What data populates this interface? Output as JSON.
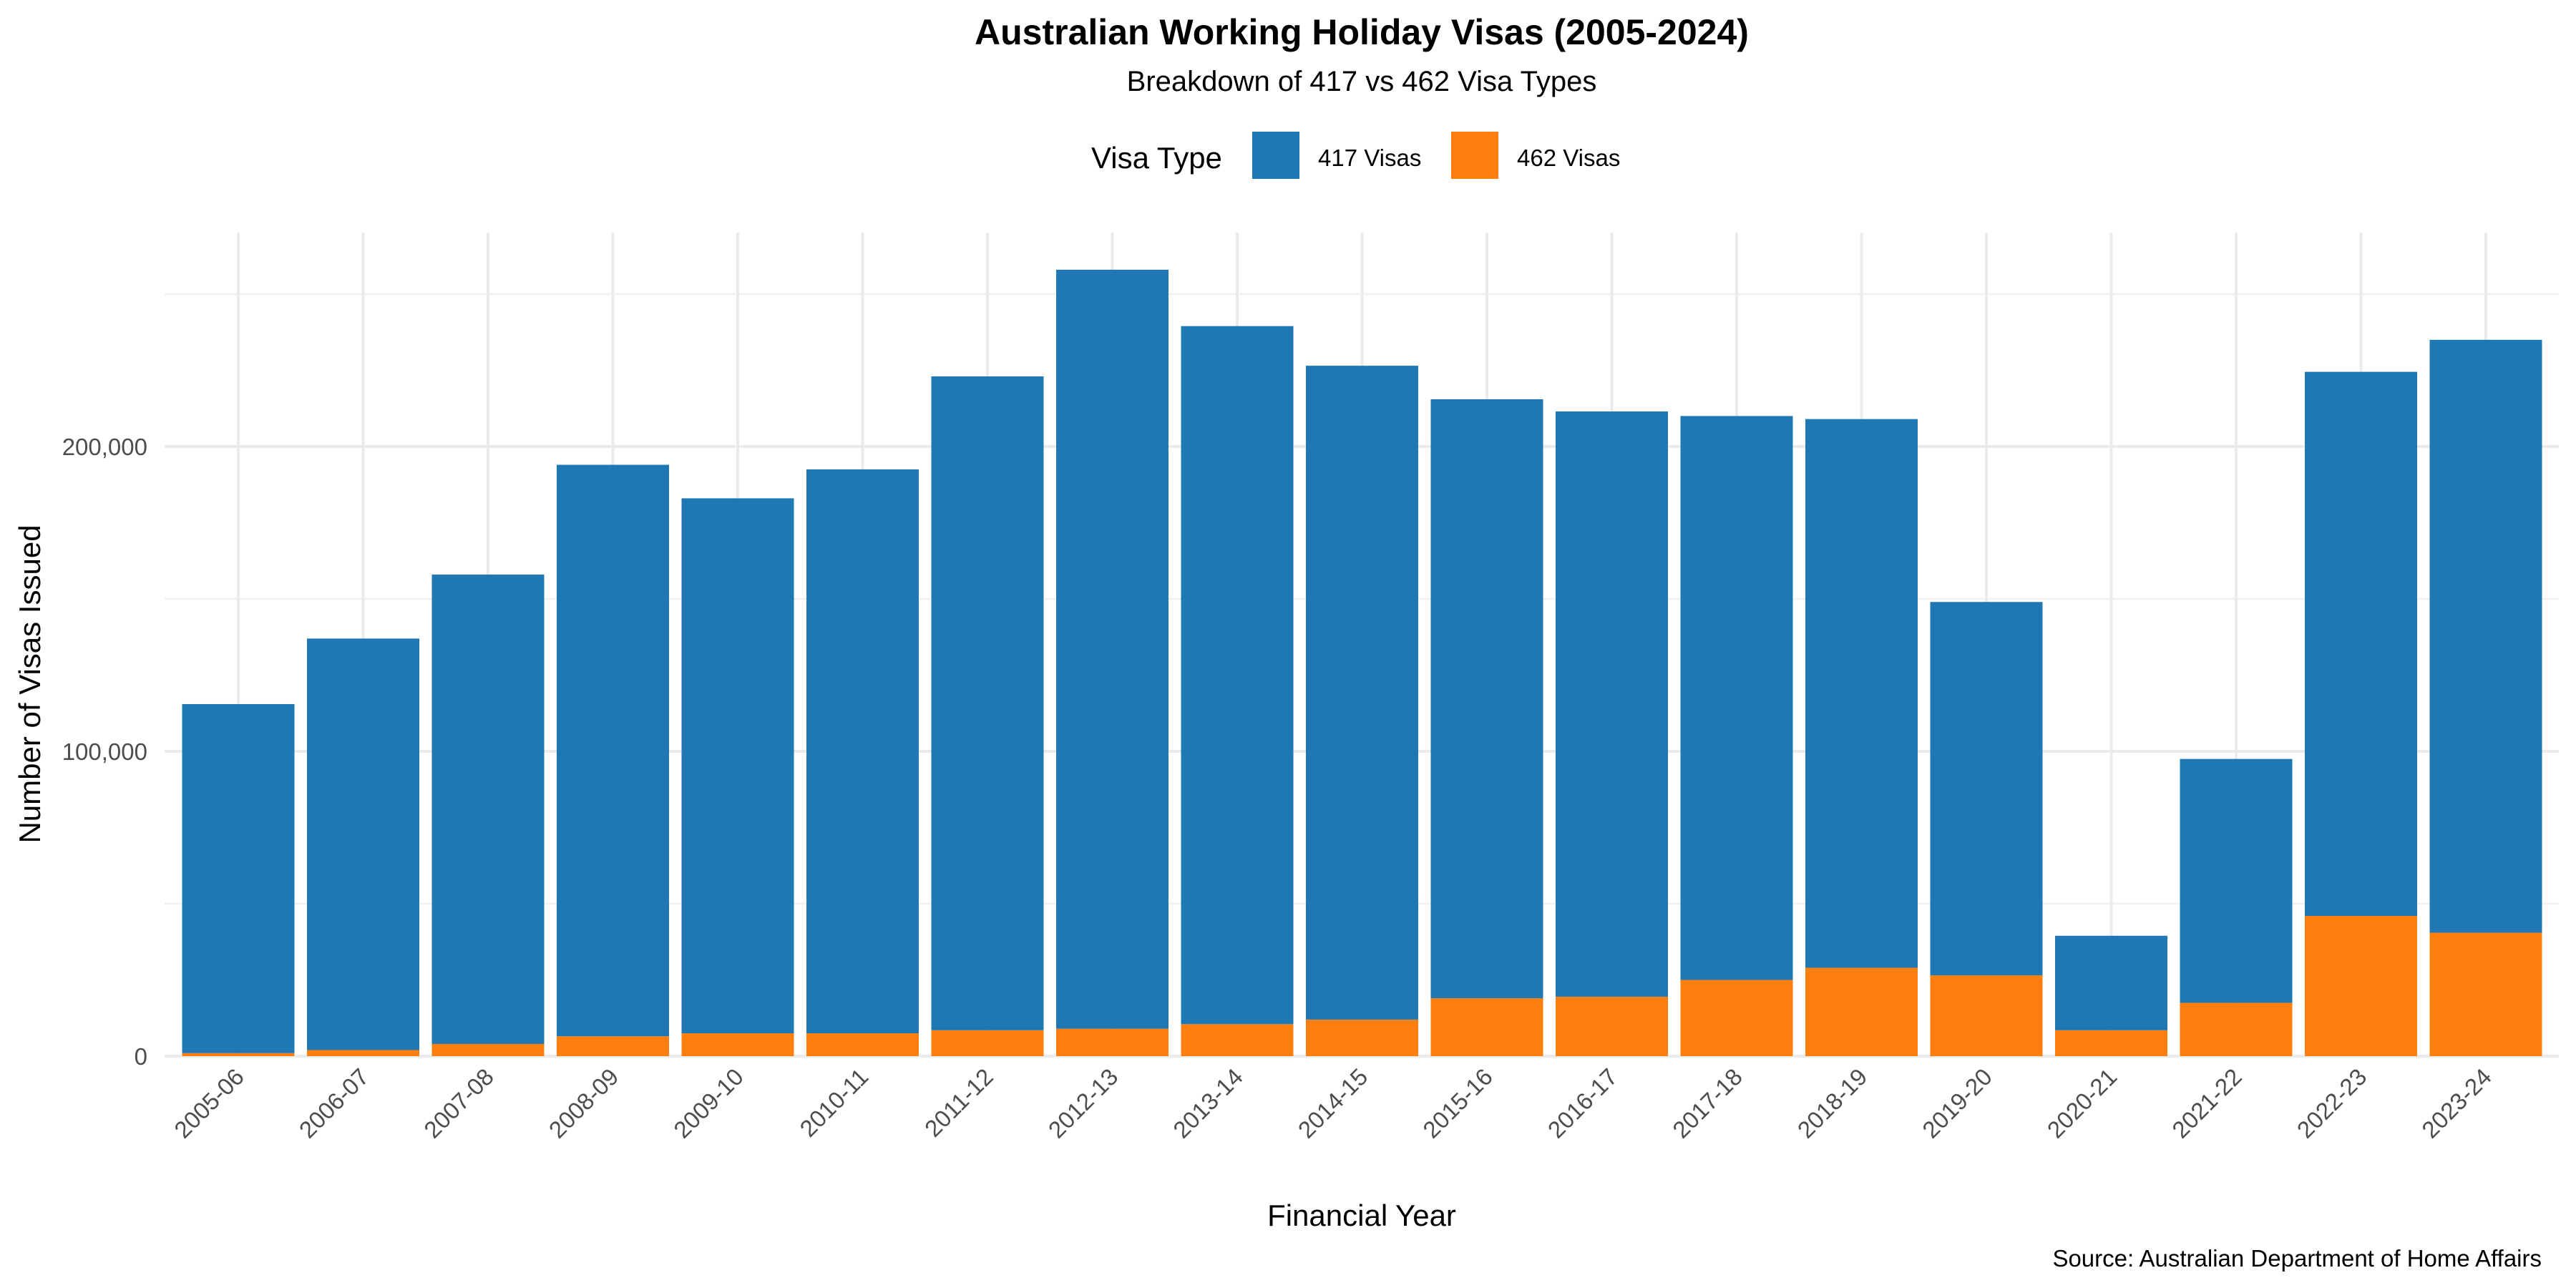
{
  "chart_data": {
    "type": "bar",
    "stacked": true,
    "title": "Australian Working Holiday Visas (2005-2024)",
    "subtitle": "Breakdown of 417 vs 462 Visa Types",
    "xlabel": "Financial Year",
    "ylabel": "Number of Visas Issued",
    "caption": "Source: Australian Department of Home Affairs",
    "legend_title": "Visa Type",
    "legend_position": "top",
    "grid": true,
    "ylim": [
      0,
      270000
    ],
    "yticks": [
      0,
      100000,
      200000
    ],
    "ytick_labels": [
      "0",
      "100,000",
      "200,000"
    ],
    "categories": [
      "2005-06",
      "2006-07",
      "2007-08",
      "2008-09",
      "2009-10",
      "2010-11",
      "2011-12",
      "2012-13",
      "2013-14",
      "2014-15",
      "2015-16",
      "2016-17",
      "2017-18",
      "2018-19",
      "2019-20",
      "2020-21",
      "2021-22",
      "2022-23",
      "2023-24"
    ],
    "series": [
      {
        "name": "417 Visas",
        "color": "#1f77b4",
        "values": [
          114500,
          135000,
          154000,
          187500,
          175500,
          185000,
          214500,
          249000,
          229000,
          214500,
          196500,
          192000,
          185000,
          180000,
          122500,
          31000,
          80000,
          178500,
          194500
        ]
      },
      {
        "name": "462 Visas",
        "color": "#ff7f0e",
        "values": [
          1000,
          2000,
          4000,
          6500,
          7500,
          7500,
          8500,
          9000,
          10500,
          12000,
          19000,
          19500,
          25000,
          29000,
          26500,
          8500,
          17500,
          46000,
          40500
        ]
      }
    ]
  }
}
